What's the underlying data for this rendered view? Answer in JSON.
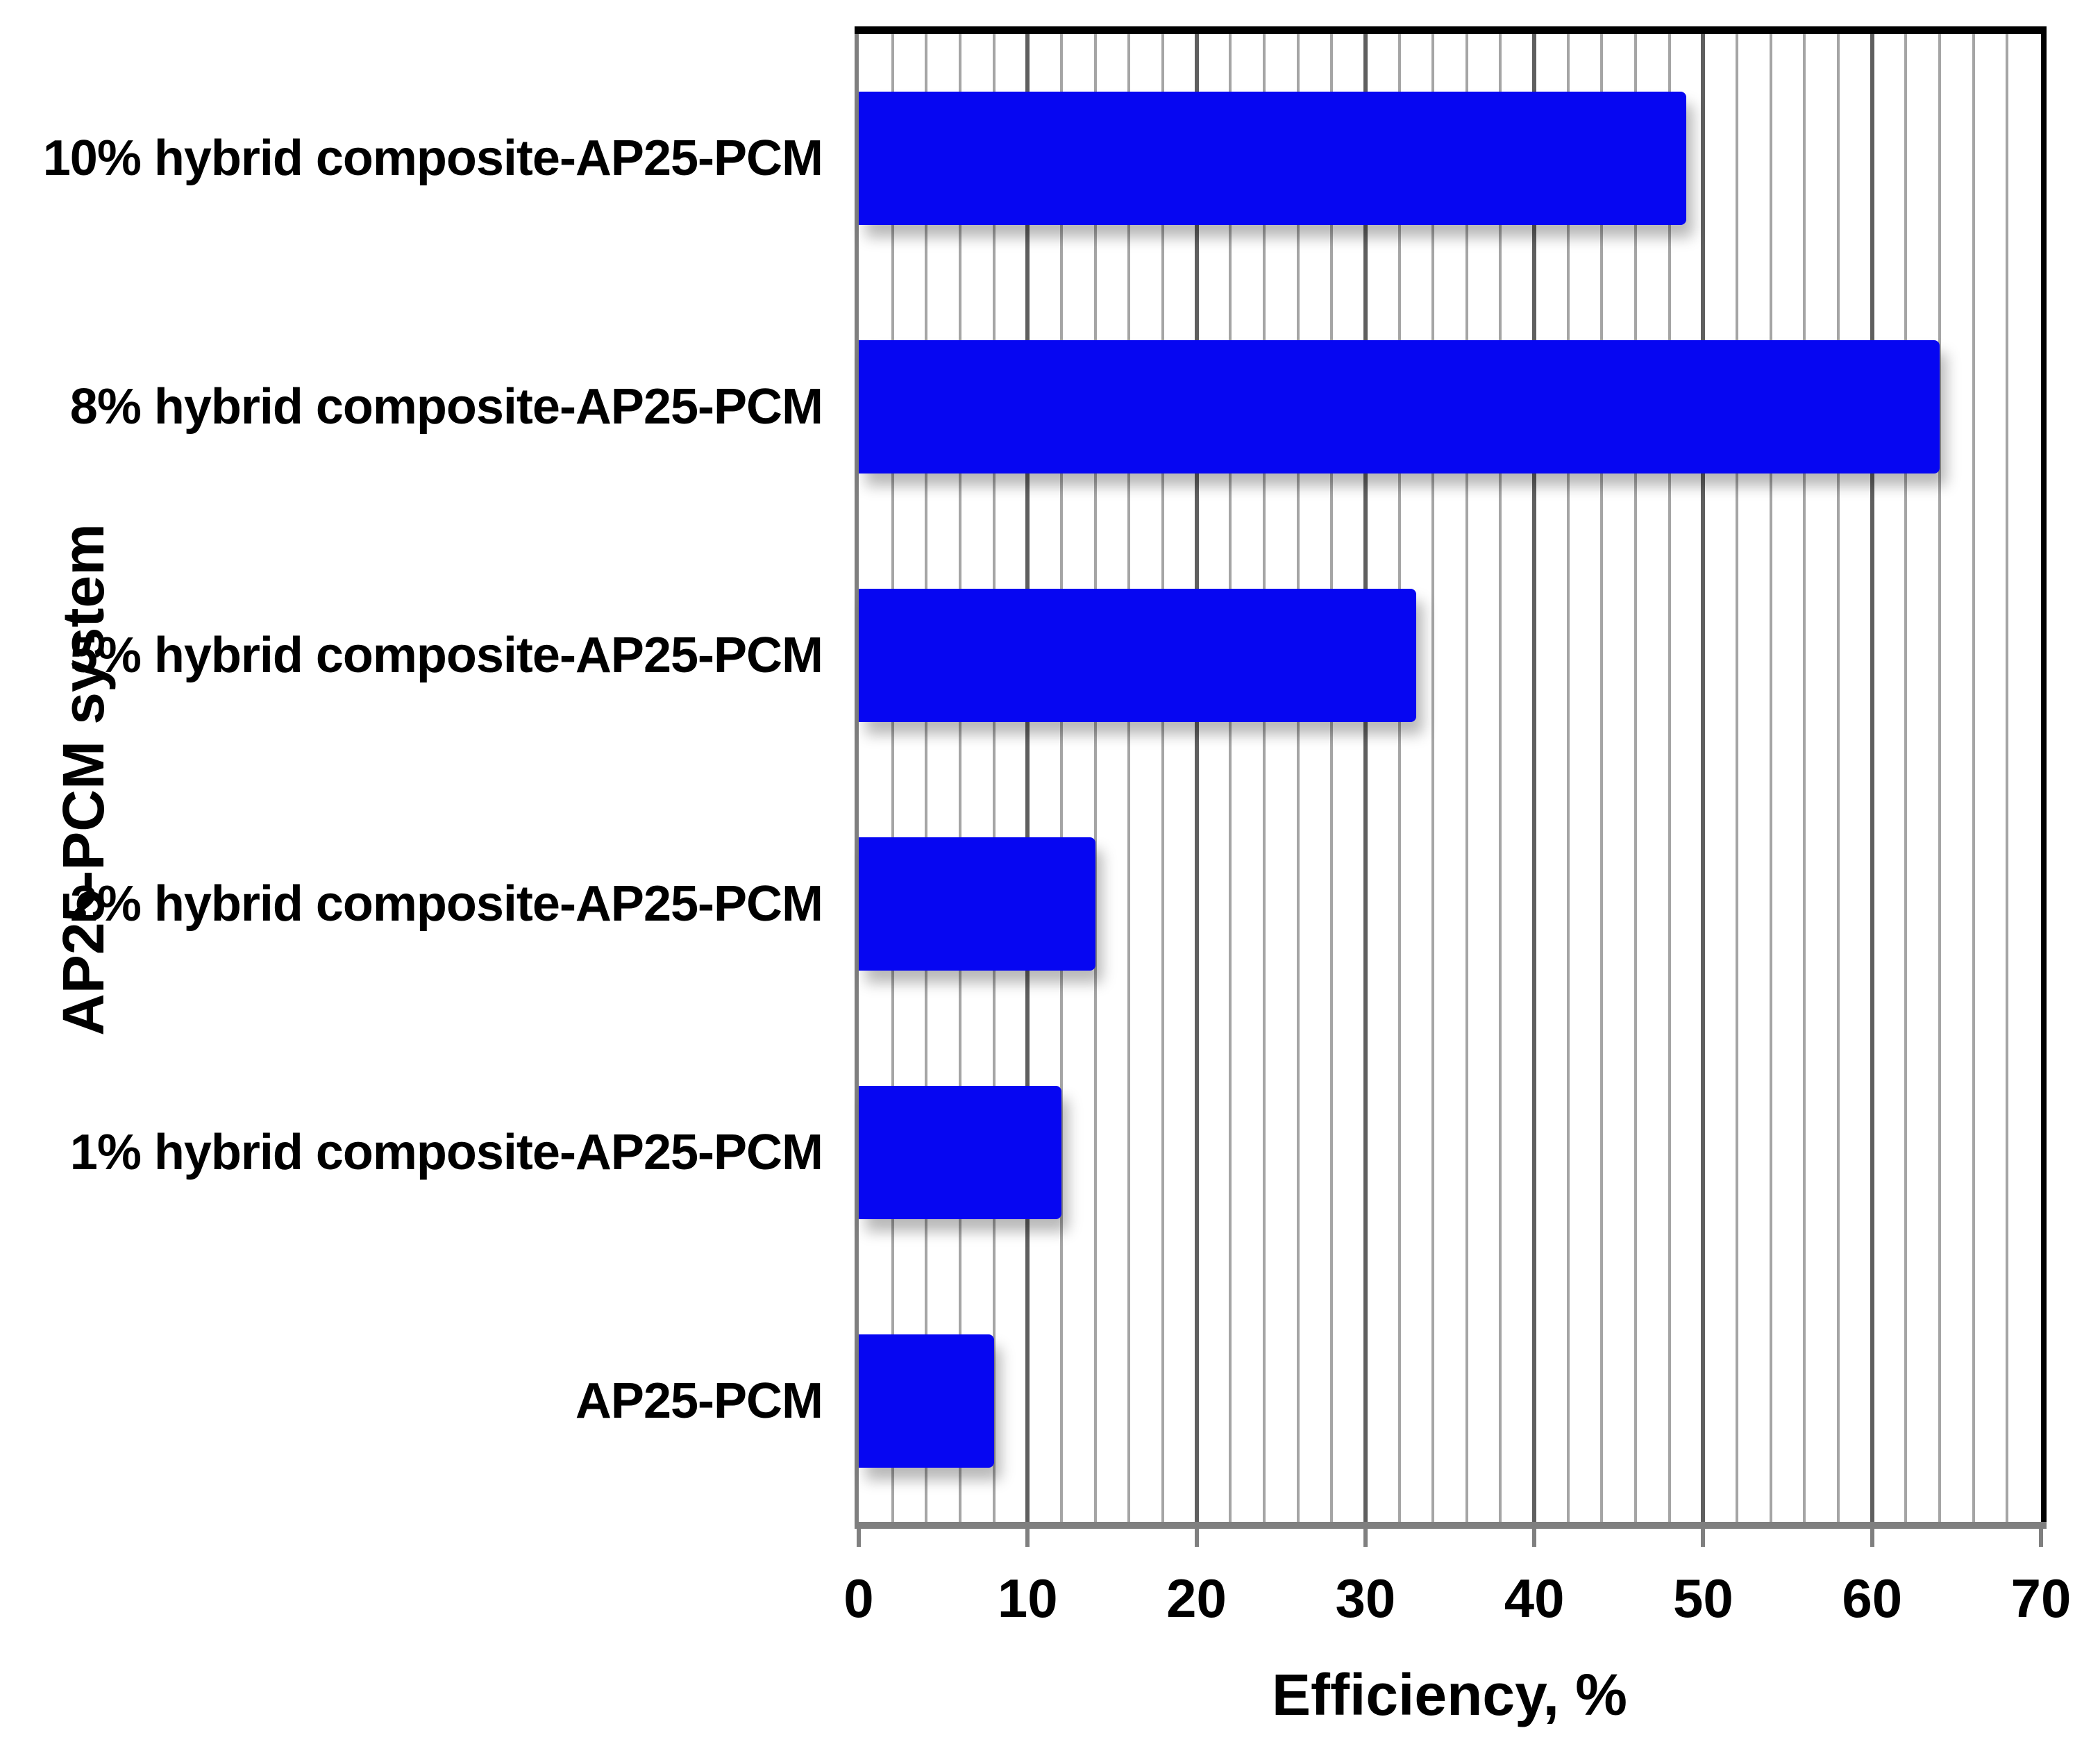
{
  "figure": {
    "background": "#ffffff"
  },
  "chart_data": {
    "type": "bar",
    "orientation": "horizontal",
    "title": "",
    "categories": [
      "10% hybrid composite-AP25-PCM",
      "8% hybrid composite-AP25-PCM",
      "5% hybrid composite-AP25-PCM",
      "2% hybrid composite-AP25-PCM",
      "1% hybrid composite-AP25-PCM",
      "AP25-PCM"
    ],
    "values": [
      49,
      64,
      33,
      14,
      12,
      8
    ],
    "xlabel": "Efficiency, %",
    "ylabel": "AP25-PCM system",
    "xlim": [
      0,
      70
    ],
    "x_major_tick_step": 10,
    "x_minor_tick_step": 2,
    "x_tick_labels": [
      "0",
      "10",
      "20",
      "30",
      "40",
      "50",
      "60",
      "70"
    ],
    "grid": "vertical gridlines on: minor every 2, major every 10",
    "legend": "none",
    "colors": {
      "bar": "#0606f2",
      "minor_grid": "#a5a5a5",
      "major_grid": "#5f5f5f",
      "axis_gray": "#7f7f7f",
      "plot_border": "#000000",
      "text": "#000000"
    }
  }
}
